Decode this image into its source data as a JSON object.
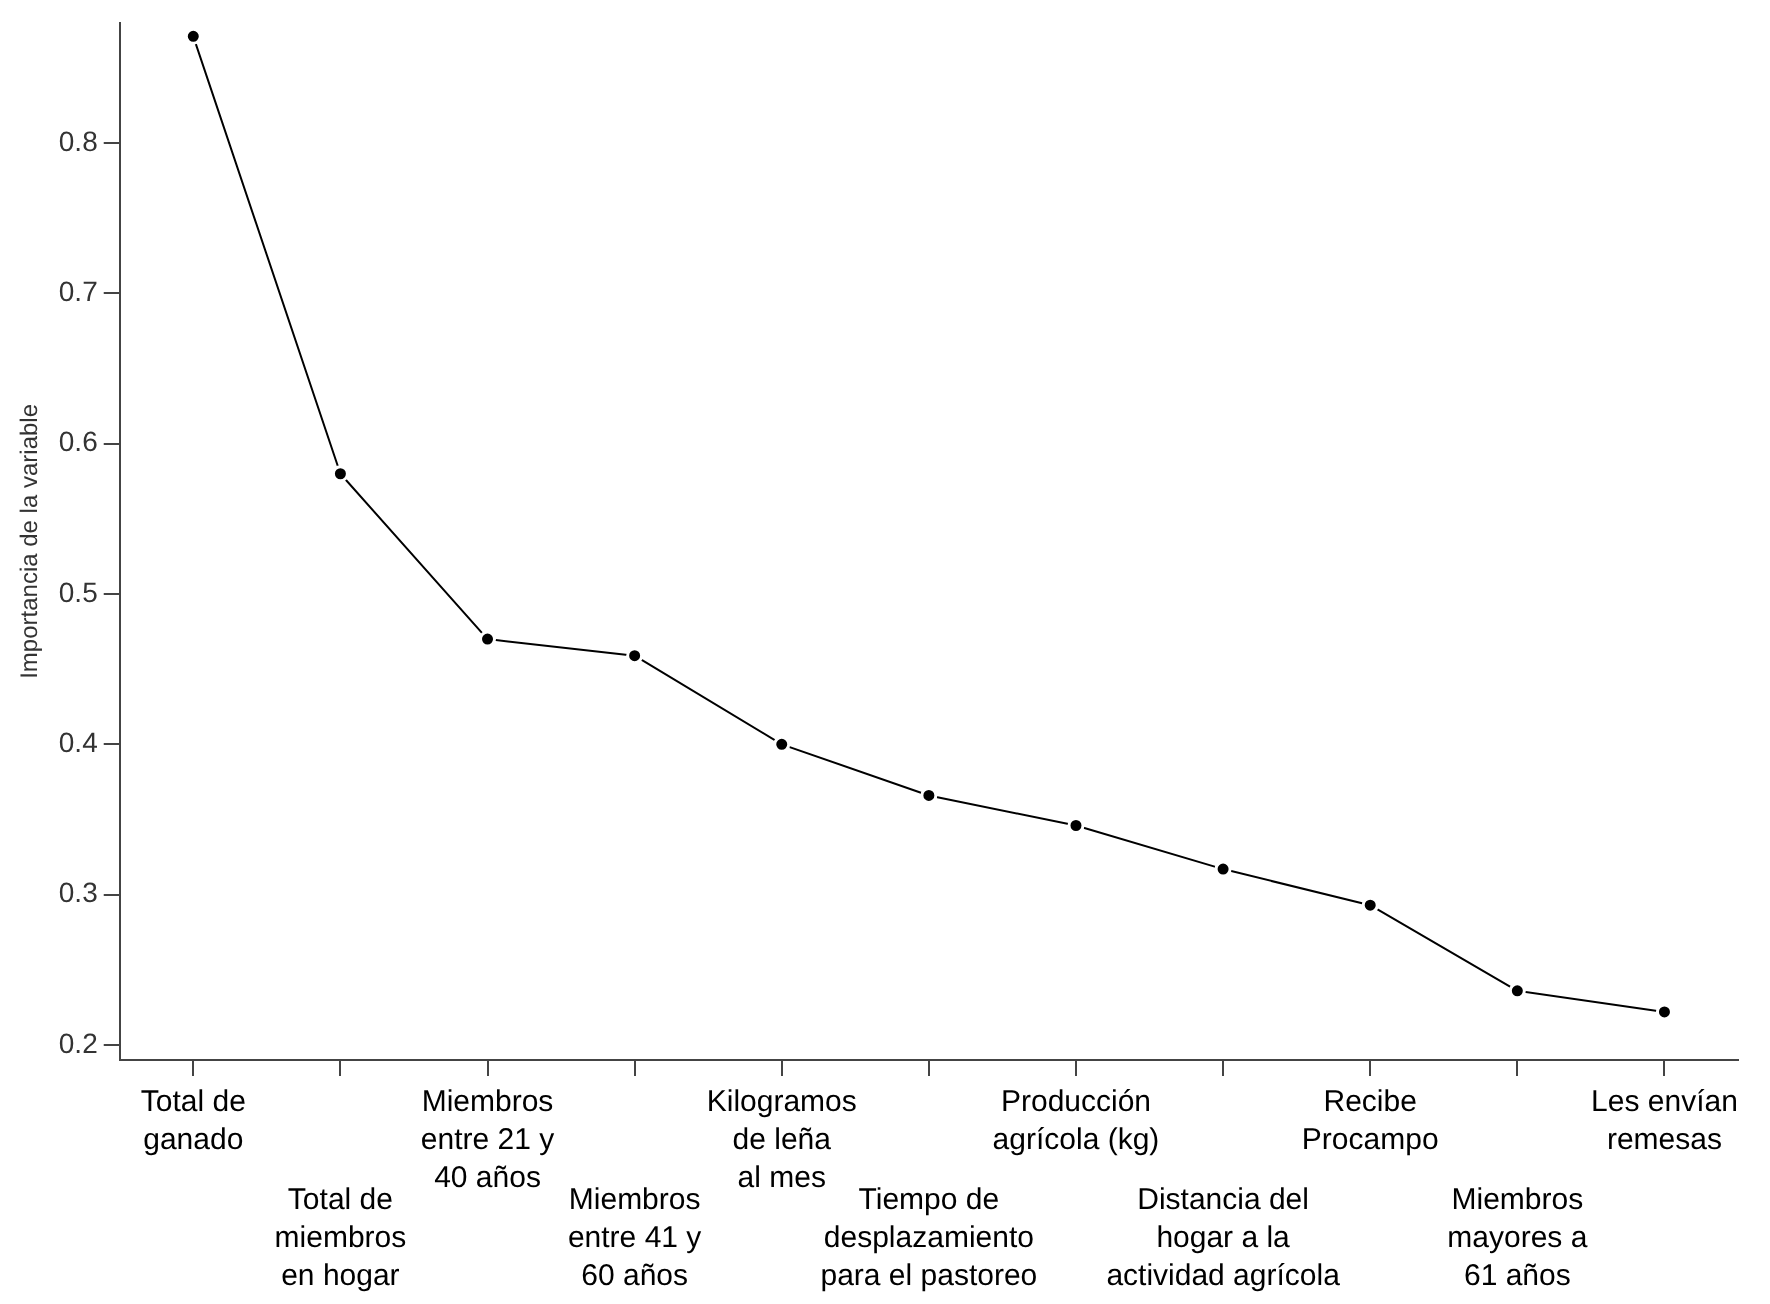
{
  "chart_data": {
    "type": "line",
    "ylabel": "Importancia de la variable",
    "categories": [
      "Total de\nganado",
      "Total de\nmiembros\nen hogar",
      "Miembros\nentre 21 y\n40 años",
      "Miembros\nentre 41 y\n60 años",
      "Kilogramos\nde leña\nal mes",
      "Tiempo de\ndesplazamiento\npara el pastoreo",
      "Producción\nagrícola (kg)",
      "Distancia del\nhogar a la\nactividad agrícola",
      "Recibe\nProcampo",
      "Miembros\nmayores a\n61 años",
      "Les envían\nremesas"
    ],
    "series": [
      {
        "color": "#000000",
        "values": [
          0.871,
          0.58,
          0.47,
          0.459,
          0.4,
          0.366,
          0.346,
          0.317,
          0.293,
          0.236,
          0.222
        ]
      }
    ],
    "ylim": [
      0.19,
      0.88
    ],
    "yticks": [
      0.2,
      0.3,
      0.4,
      0.5,
      0.6,
      0.7,
      0.8
    ],
    "grid": false,
    "legend": false,
    "marker": "circle",
    "line_style": "solid"
  }
}
